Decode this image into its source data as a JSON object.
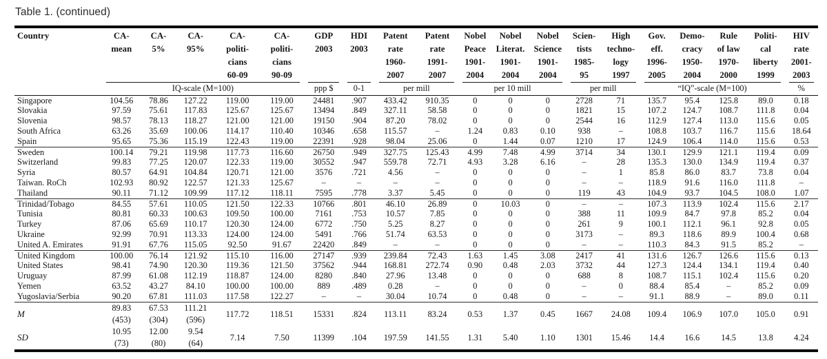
{
  "title": "Table 1. (continued)",
  "table": {
    "columns": [
      [
        "Country"
      ],
      [
        "CA-",
        "mean"
      ],
      [
        "CA-",
        "5%"
      ],
      [
        "CA-",
        "95%"
      ],
      [
        "CA-",
        "politi-",
        "cians",
        "60-09"
      ],
      [
        "CA-",
        "politi-",
        "cians",
        "90-09"
      ],
      [
        "GDP",
        "2003"
      ],
      [
        "HDI",
        "2003"
      ],
      [
        "Patent",
        "rate",
        "1960-",
        "2007"
      ],
      [
        "Patent",
        "rate",
        "1991-",
        "2007"
      ],
      [
        "Nobel",
        "Peace",
        "1901-",
        "2004"
      ],
      [
        "Nobel",
        "Literat.",
        "1901-",
        "2004"
      ],
      [
        "Nobel",
        "Science",
        "1901-",
        "2004"
      ],
      [
        "Scien-",
        "tists",
        "1985-",
        "95"
      ],
      [
        "High",
        "techno-",
        "logy",
        "1997"
      ],
      [
        "Gov.",
        "eff.",
        "1996-",
        "2005"
      ],
      [
        "Demo-",
        "cracy",
        "1950-",
        "2004"
      ],
      [
        "Rule",
        "of law",
        "1970-",
        "2000"
      ],
      [
        "Politi-",
        "cal",
        "liberty",
        "1999"
      ],
      [
        "HIV",
        "rate",
        "2001-",
        "2003"
      ]
    ],
    "unit_groups": [
      {
        "label": "",
        "colspan": 1
      },
      {
        "label": "IQ-scale (M=100)",
        "colspan": 5
      },
      {
        "label": "ppp $",
        "colspan": 1
      },
      {
        "label": "0-1",
        "colspan": 1
      },
      {
        "label": "per mill",
        "colspan": 2
      },
      {
        "label": "per 10 mill",
        "colspan": 3
      },
      {
        "label": "per mill",
        "colspan": 2
      },
      {
        "label": "“IQ”-scale (M=100)",
        "colspan": 4
      },
      {
        "label": "%",
        "colspan": 1
      }
    ],
    "groups": [
      [
        [
          "Singapore",
          "104.56",
          "78.86",
          "127.22",
          "119.00",
          "119.00",
          "24481",
          ".907",
          "433.42",
          "910.35",
          "0",
          "0",
          "0",
          "2728",
          "71",
          "135.7",
          "95.4",
          "125.8",
          "89.0",
          "0.18"
        ],
        [
          "Slovakia",
          "97.59",
          "75.61",
          "117.83",
          "125.67",
          "125.67",
          "13494",
          ".849",
          "327.11",
          "58.58",
          "0",
          "0",
          "0",
          "1821",
          "15",
          "107.2",
          "124.7",
          "108.7",
          "111.8",
          "0.04"
        ],
        [
          "Slovenia",
          "98.57",
          "78.13",
          "118.27",
          "121.00",
          "121.00",
          "19150",
          ".904",
          "87.20",
          "78.02",
          "0",
          "0",
          "0",
          "2544",
          "16",
          "112.9",
          "127.4",
          "113.0",
          "115.6",
          "0.05"
        ],
        [
          "South Africa",
          "63.26",
          "35.69",
          "100.06",
          "114.17",
          "110.40",
          "10346",
          ".658",
          "115.57",
          "–",
          "1.24",
          "0.83",
          "0.10",
          "938",
          "–",
          "108.8",
          "103.7",
          "116.7",
          "115.6",
          "18.64"
        ],
        [
          "Spain",
          "95.65",
          "75.36",
          "115.19",
          "122.43",
          "119.00",
          "22391",
          ".928",
          "98.04",
          "25.06",
          "0",
          "1.44",
          "0.07",
          "1210",
          "17",
          "124.9",
          "106.4",
          "114.0",
          "115.6",
          "0.53"
        ]
      ],
      [
        [
          "Sweden",
          "100.14",
          "79.21",
          "119.98",
          "117.73",
          "116.60",
          "26750",
          ".949",
          "327.75",
          "125.43",
          "4.99",
          "7.48",
          "4.99",
          "3714",
          "34",
          "130.1",
          "129.9",
          "121.1",
          "119.4",
          "0.09"
        ],
        [
          "Switzerland",
          "99.83",
          "77.25",
          "120.07",
          "122.33",
          "119.00",
          "30552",
          ".947",
          "559.78",
          "72.71",
          "4.93",
          "3.28",
          "6.16",
          "–",
          "28",
          "135.3",
          "130.0",
          "134.9",
          "119.4",
          "0.37"
        ],
        [
          "Syria",
          "80.57",
          "64.91",
          "104.84",
          "120.71",
          "121.00",
          "3576",
          ".721",
          "4.56",
          "–",
          "0",
          "0",
          "0",
          "–",
          "1",
          "85.8",
          "86.0",
          "83.7",
          "73.8",
          "0.04"
        ],
        [
          "Taiwan. RoCh",
          "102.93",
          "80.92",
          "122.57",
          "121.33",
          "125.67",
          "–",
          "–",
          "–",
          "–",
          "0",
          "0",
          "0",
          "–",
          "–",
          "118.9",
          "91.6",
          "116.0",
          "111.8",
          "–"
        ],
        [
          "Thailand",
          "90.11",
          "71.12",
          "109.99",
          "117.12",
          "118.11",
          "7595",
          ".778",
          "3.37",
          "5.45",
          "0",
          "0",
          "0",
          "119",
          "43",
          "104.9",
          "93.7",
          "104.5",
          "108.0",
          "1.07"
        ]
      ],
      [
        [
          "Trinidad/Tobago",
          "84.55",
          "57.61",
          "110.05",
          "121.50",
          "122.33",
          "10766",
          ".801",
          "46.10",
          "26.89",
          "0",
          "10.03",
          "0",
          "–",
          "–",
          "107.3",
          "113.9",
          "102.4",
          "115.6",
          "2.17"
        ],
        [
          "Tunisia",
          "80.81",
          "60.33",
          "100.63",
          "109.50",
          "100.00",
          "7161",
          ".753",
          "10.57",
          "7.85",
          "0",
          "0",
          "0",
          "388",
          "11",
          "109.9",
          "84.7",
          "97.8",
          "85.2",
          "0.04"
        ],
        [
          "Turkey",
          "87.06",
          "65.69",
          "110.17",
          "120.30",
          "124.00",
          "6772",
          ".750",
          "5.25",
          "8.27",
          "0",
          "0",
          "0",
          "261",
          "9",
          "100.1",
          "112.1",
          "96.1",
          "92.8",
          "0.05"
        ],
        [
          "Ukraine",
          "92.99",
          "70.91",
          "113.33",
          "124.00",
          "124.00",
          "5491",
          ".766",
          "51.74",
          "63.53",
          "0",
          "0",
          "0",
          "3173",
          "–",
          "89.3",
          "118.6",
          "89.9",
          "100.4",
          "0.68"
        ],
        [
          "United A. Emirates",
          "91.91",
          "67.76",
          "115.05",
          "92.50",
          "91.67",
          "22420",
          ".849",
          "–",
          "–",
          "0",
          "0",
          "0",
          "–",
          "–",
          "110.3",
          "84.3",
          "91.5",
          "85.2",
          "–"
        ]
      ],
      [
        [
          "United Kingdom",
          "100.00",
          "76.14",
          "121.92",
          "115.10",
          "116.00",
          "27147",
          ".939",
          "239.84",
          "72.43",
          "1.63",
          "1.45",
          "3.08",
          "2417",
          "41",
          "131.6",
          "126.7",
          "126.6",
          "115.6",
          "0.13"
        ],
        [
          "United States",
          "98.41",
          "74.90",
          "120.30",
          "119.36",
          "121.50",
          "37562",
          ".944",
          "168.81",
          "272.74",
          "0.90",
          "0.48",
          "2.03",
          "3732",
          "44",
          "127.3",
          "124.4",
          "134.1",
          "119.4",
          "0.40"
        ],
        [
          "Uruguay",
          "87.99",
          "61.08",
          "112.19",
          "118.87",
          "124.00",
          "8280",
          ".840",
          "27.96",
          "13.48",
          "0",
          "0",
          "0",
          "688",
          "8",
          "108.7",
          "115.1",
          "102.4",
          "115.6",
          "0.20"
        ],
        [
          "Yemen",
          "63.52",
          "43.27",
          "84.10",
          "100.00",
          "100.00",
          "889",
          ".489",
          "0.28",
          "–",
          "0",
          "0",
          "0",
          "–",
          "0",
          "88.4",
          "85.4",
          "–",
          "85.2",
          "0.09"
        ],
        [
          "Yugoslavia/Serbia",
          "90.20",
          "67.81",
          "111.03",
          "117.58",
          "122.27",
          "–",
          "–",
          "30.04",
          "10.74",
          "0",
          "0.48",
          "0",
          "–",
          "–",
          "91.1",
          "88.9",
          "–",
          "89.0",
          "0.11"
        ]
      ]
    ],
    "summary": [
      {
        "label": "M",
        "cells": [
          [
            "89.83",
            "(453)"
          ],
          [
            "67.53",
            "(304)"
          ],
          [
            "111.21",
            "(596)"
          ],
          "117.72",
          "118.51",
          "15331",
          ".824",
          "113.11",
          "83.24",
          "0.53",
          "1.37",
          "0.45",
          "1667",
          "24.08",
          "109.4",
          "106.9",
          "107.0",
          "105.0",
          "0.91"
        ]
      },
      {
        "label": "SD",
        "cells": [
          [
            "10.95",
            "(73)"
          ],
          [
            "12.00",
            "(80)"
          ],
          [
            "9.54",
            "(64)"
          ],
          "7.14",
          "7.50",
          "11399",
          ".104",
          "197.59",
          "141.55",
          "1.31",
          "5.40",
          "1.10",
          "1301",
          "15.46",
          "14.4",
          "16.6",
          "14.5",
          "13.8",
          "4.24"
        ]
      }
    ]
  }
}
